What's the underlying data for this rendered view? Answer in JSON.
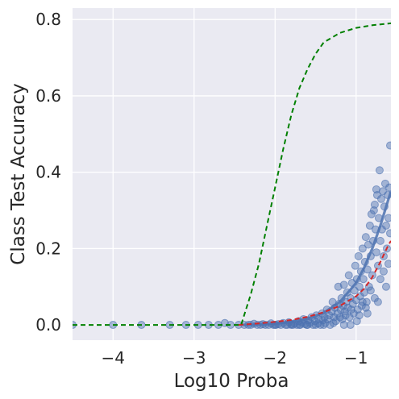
{
  "chart_data": {
    "type": "scatter",
    "title": "",
    "xlabel": "Log10 Proba",
    "ylabel": "Class Test Accuracy",
    "xlim": [
      -4.5,
      -0.57
    ],
    "ylim": [
      -0.04,
      0.83
    ],
    "grid": true,
    "legend": "none",
    "x_ticks": [
      -4,
      -3,
      -2,
      -1
    ],
    "x_tick_labels": [
      "−4",
      "−3",
      "−2",
      "−1"
    ],
    "y_ticks": [
      0.0,
      0.2,
      0.4,
      0.6,
      0.8
    ],
    "y_tick_labels": [
      "0.0",
      "0.2",
      "0.4",
      "0.6",
      "0.8"
    ],
    "colors": {
      "background": "#eaeaf2",
      "grid": "#ffffff",
      "scatter": "#4c72b0",
      "fit_line": "#4c72b0",
      "red_dashed": "#d62728",
      "green_dashed": "#008000"
    },
    "scatter_points": [
      [
        -4.5,
        0.0
      ],
      [
        -4.0,
        0.0
      ],
      [
        -3.65,
        0.0
      ],
      [
        -3.3,
        0.0
      ],
      [
        -3.1,
        0.0
      ],
      [
        -2.95,
        0.0
      ],
      [
        -2.82,
        0.0
      ],
      [
        -2.7,
        0.0
      ],
      [
        -2.62,
        0.005
      ],
      [
        -2.55,
        0.0
      ],
      [
        -2.45,
        0.0
      ],
      [
        -2.38,
        0.0
      ],
      [
        -2.33,
        0.0
      ],
      [
        -2.3,
        0.0
      ],
      [
        -2.26,
        0.003
      ],
      [
        -2.22,
        0.0
      ],
      [
        -2.18,
        0.0
      ],
      [
        -2.15,
        0.002
      ],
      [
        -2.12,
        0.0
      ],
      [
        -2.08,
        0.0
      ],
      [
        -2.05,
        0.004
      ],
      [
        -2.02,
        0.0
      ],
      [
        -1.99,
        0.0
      ],
      [
        -1.96,
        0.002
      ],
      [
        -1.93,
        0.0
      ],
      [
        -1.9,
        0.005
      ],
      [
        -1.87,
        0.0
      ],
      [
        -1.85,
        0.0
      ],
      [
        -1.83,
        0.007
      ],
      [
        -1.8,
        0.002
      ],
      [
        -1.78,
        0.0
      ],
      [
        -1.76,
        0.004
      ],
      [
        -1.73,
        0.0
      ],
      [
        -1.71,
        0.01
      ],
      [
        -1.69,
        0.0
      ],
      [
        -1.67,
        0.006
      ],
      [
        -1.65,
        0.015
      ],
      [
        -1.63,
        0.002
      ],
      [
        -1.61,
        0.0
      ],
      [
        -1.59,
        0.012
      ],
      [
        -1.57,
        0.005
      ],
      [
        -1.55,
        0.02
      ],
      [
        -1.53,
        0.0
      ],
      [
        -1.51,
        0.01
      ],
      [
        -1.49,
        0.025
      ],
      [
        -1.47,
        0.004
      ],
      [
        -1.46,
        0.015
      ],
      [
        -1.44,
        0.0
      ],
      [
        -1.42,
        0.03
      ],
      [
        -1.41,
        0.012
      ],
      [
        -1.39,
        0.02
      ],
      [
        -1.38,
        0.005
      ],
      [
        -1.36,
        0.04
      ],
      [
        -1.35,
        0.015
      ],
      [
        -1.33,
        0.025
      ],
      [
        -1.32,
        0.0
      ],
      [
        -1.3,
        0.035
      ],
      [
        -1.29,
        0.06
      ],
      [
        -1.27,
        0.02
      ],
      [
        -1.26,
        0.045
      ],
      [
        -1.25,
        0.01
      ],
      [
        -1.23,
        0.03
      ],
      [
        -1.22,
        0.1
      ],
      [
        -1.21,
        0.055
      ],
      [
        -1.2,
        0.02
      ],
      [
        -1.19,
        0.04
      ],
      [
        -1.18,
        0.07
      ],
      [
        -1.17,
        0.015
      ],
      [
        -1.16,
        0.05
      ],
      [
        -1.15,
        0.105
      ],
      [
        -1.14,
        0.035
      ],
      [
        -1.13,
        0.025
      ],
      [
        -1.12,
        0.06
      ],
      [
        -1.11,
        0.085
      ],
      [
        -1.1,
        0.045
      ],
      [
        -1.09,
        0.13
      ],
      [
        -1.08,
        0.02
      ],
      [
        -1.07,
        0.07
      ],
      [
        -1.06,
        0.04
      ],
      [
        -1.05,
        0.11
      ],
      [
        -1.04,
        0.055
      ],
      [
        -1.03,
        0.03
      ],
      [
        -1.02,
        0.09
      ],
      [
        -1.01,
        0.155
      ],
      [
        -1.0,
        0.065
      ],
      [
        -0.99,
        0.12
      ],
      [
        -0.98,
        0.04
      ],
      [
        -0.97,
        0.18
      ],
      [
        -0.96,
        0.1
      ],
      [
        -0.95,
        0.075
      ],
      [
        -0.94,
        0.14
      ],
      [
        -0.93,
        0.05
      ],
      [
        -0.92,
        0.2
      ],
      [
        -0.91,
        0.12
      ],
      [
        -0.9,
        0.085
      ],
      [
        -0.89,
        0.165
      ],
      [
        -0.88,
        0.23
      ],
      [
        -0.87,
        0.06
      ],
      [
        -0.86,
        0.145
      ],
      [
        -0.85,
        0.21
      ],
      [
        -0.84,
        0.1
      ],
      [
        -0.83,
        0.26
      ],
      [
        -0.82,
        0.18
      ],
      [
        -0.81,
        0.29
      ],
      [
        -0.8,
        0.13
      ],
      [
        -0.79,
        0.22
      ],
      [
        -0.78,
        0.3
      ],
      [
        -0.77,
        0.07
      ],
      [
        -0.76,
        0.25
      ],
      [
        -0.75,
        0.19
      ],
      [
        -0.74,
        0.34
      ],
      [
        -0.73,
        0.155
      ],
      [
        -0.72,
        0.28
      ],
      [
        -0.71,
        0.405
      ],
      [
        -0.7,
        0.22
      ],
      [
        -0.69,
        0.33
      ],
      [
        -0.68,
        0.25
      ],
      [
        -0.67,
        0.35
      ],
      [
        -0.66,
        0.18
      ],
      [
        -0.65,
        0.31
      ],
      [
        -0.64,
        0.37
      ],
      [
        -0.63,
        0.26
      ],
      [
        -0.62,
        0.2
      ],
      [
        -0.61,
        0.34
      ],
      [
        -0.6,
        0.28
      ],
      [
        -0.59,
        0.36
      ],
      [
        -0.58,
        0.47
      ],
      [
        -0.58,
        0.24
      ],
      [
        -0.77,
        0.315
      ],
      [
        -0.75,
        0.355
      ],
      [
        -0.88,
        0.045
      ],
      [
        -0.96,
        0.025
      ],
      [
        -1.15,
        0.0
      ],
      [
        -1.28,
        0.005
      ],
      [
        -1.4,
        0.0
      ],
      [
        -1.5,
        0.0
      ],
      [
        -1.6,
        0.0
      ],
      [
        -1.7,
        0.0
      ],
      [
        -1.8,
        0.0
      ],
      [
        -2.0,
        0.0
      ],
      [
        -0.92,
        0.06
      ],
      [
        -0.82,
        0.09
      ],
      [
        -0.7,
        0.12
      ],
      [
        -0.66,
        0.14
      ],
      [
        -0.6,
        0.16
      ],
      [
        -1.07,
        0.0
      ],
      [
        -0.99,
        0.01
      ],
      [
        -0.86,
        0.03
      ],
      [
        -0.73,
        0.06
      ],
      [
        -0.63,
        0.1
      ]
    ],
    "fit_line": [
      [
        -2.4,
        0.0
      ],
      [
        -2.2,
        0.001
      ],
      [
        -2.0,
        0.003
      ],
      [
        -1.8,
        0.008
      ],
      [
        -1.6,
        0.016
      ],
      [
        -1.4,
        0.032
      ],
      [
        -1.2,
        0.06
      ],
      [
        -1.0,
        0.11
      ],
      [
        -0.9,
        0.15
      ],
      [
        -0.8,
        0.2
      ],
      [
        -0.7,
        0.26
      ],
      [
        -0.6,
        0.33
      ],
      [
        -0.57,
        0.35
      ]
    ],
    "red_dashed": [
      [
        -2.45,
        0.0
      ],
      [
        -2.2,
        0.004
      ],
      [
        -2.0,
        0.008
      ],
      [
        -1.8,
        0.013
      ],
      [
        -1.6,
        0.021
      ],
      [
        -1.4,
        0.033
      ],
      [
        -1.2,
        0.05
      ],
      [
        -1.0,
        0.075
      ],
      [
        -0.9,
        0.095
      ],
      [
        -0.8,
        0.125
      ],
      [
        -0.7,
        0.165
      ],
      [
        -0.6,
        0.21
      ],
      [
        -0.57,
        0.22
      ]
    ],
    "green_dashed": [
      [
        -4.5,
        0.0
      ],
      [
        -2.42,
        0.0
      ],
      [
        -2.3,
        0.08
      ],
      [
        -2.2,
        0.16
      ],
      [
        -2.1,
        0.26
      ],
      [
        -2.0,
        0.36
      ],
      [
        -1.9,
        0.46
      ],
      [
        -1.8,
        0.55
      ],
      [
        -1.7,
        0.62
      ],
      [
        -1.6,
        0.67
      ],
      [
        -1.5,
        0.71
      ],
      [
        -1.4,
        0.74
      ],
      [
        -1.2,
        0.765
      ],
      [
        -1.0,
        0.778
      ],
      [
        -0.8,
        0.785
      ],
      [
        -0.57,
        0.79
      ]
    ]
  }
}
